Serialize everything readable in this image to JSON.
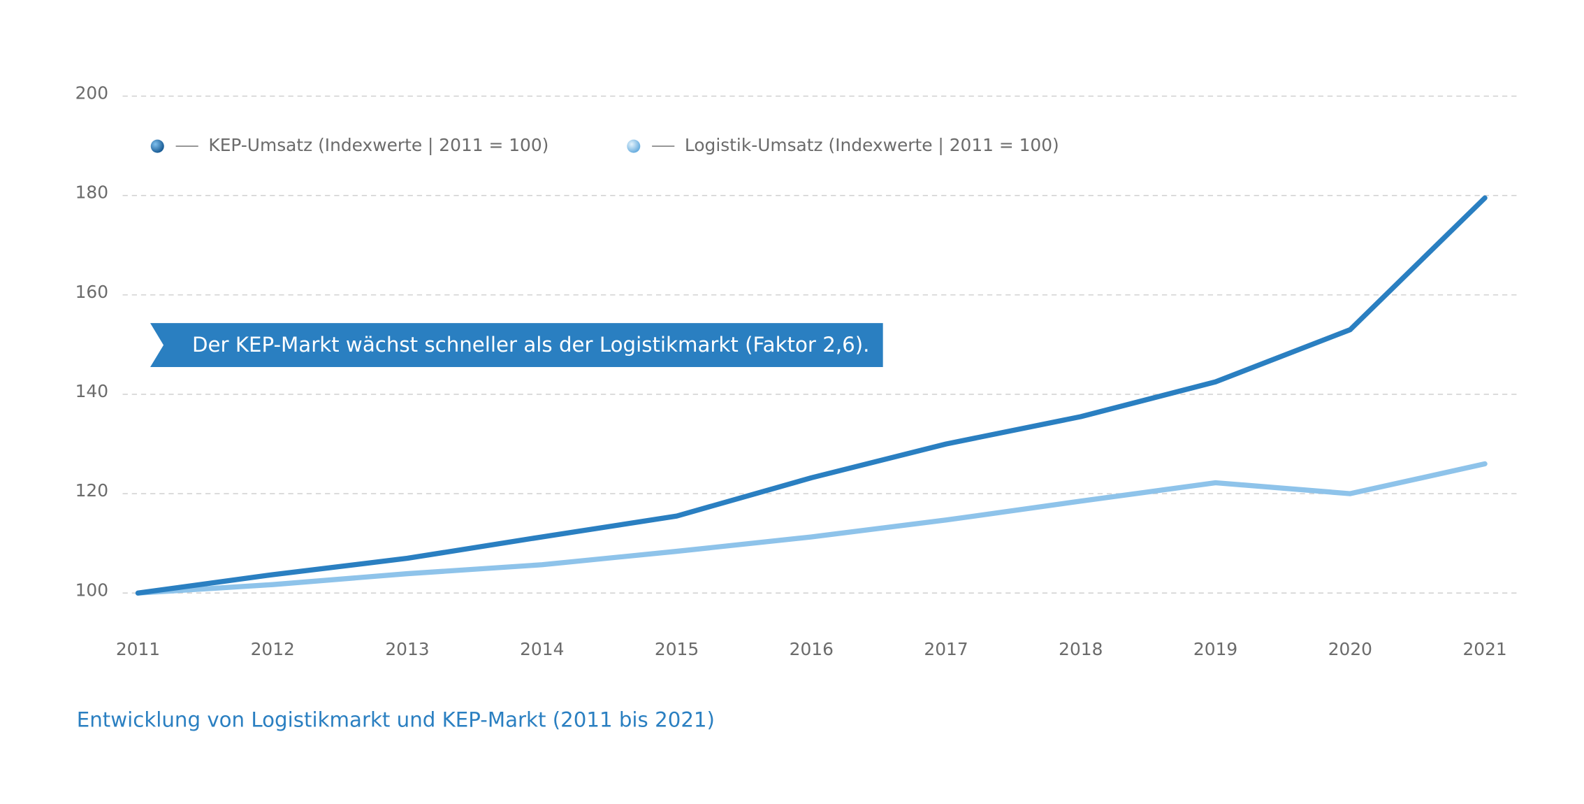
{
  "chart_data": {
    "type": "line",
    "caption": "Entwicklung von Logistikmarkt und KEP-Markt (2011 bis 2021)",
    "annotation": "Der KEP-Markt wächst schneller als der Logistikmarkt (Faktor 2,6).",
    "categories": [
      "2011",
      "2012",
      "2013",
      "2014",
      "2015",
      "2016",
      "2017",
      "2018",
      "2019",
      "2020",
      "2021"
    ],
    "series": [
      {
        "name": "KEP-Umsatz (Indexwerte | 2011 = 100)",
        "color": "#2a7fc1",
        "values": [
          100,
          103.7,
          107,
          111.3,
          115.5,
          123.2,
          130,
          135.5,
          142.5,
          153,
          179.5
        ]
      },
      {
        "name": "Logistik-Umsatz (Indexwerte | 2011 = 100)",
        "color": "#8ec3ea",
        "values": [
          100,
          101.7,
          103.9,
          105.7,
          108.4,
          111.3,
          114.7,
          118.5,
          122.2,
          120,
          126
        ]
      }
    ],
    "ylim": [
      100,
      200
    ],
    "yticks": [
      100,
      120,
      140,
      160,
      180,
      200
    ],
    "grid": true
  }
}
